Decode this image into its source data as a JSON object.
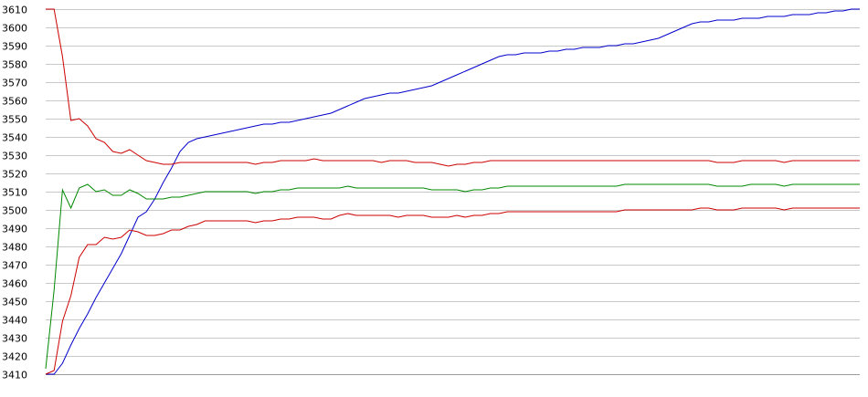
{
  "chart_data": {
    "type": "line",
    "title": "",
    "xlabel": "",
    "ylabel": "",
    "ylim": [
      3410,
      3610
    ],
    "yticks": [
      3410,
      3420,
      3430,
      3440,
      3450,
      3460,
      3470,
      3480,
      3490,
      3500,
      3510,
      3520,
      3530,
      3540,
      3550,
      3560,
      3570,
      3580,
      3590,
      3600,
      3610
    ],
    "grid": true,
    "legend": "none",
    "series": [
      {
        "color": "#0000cc",
        "values": [
          3410,
          3410,
          3416,
          3426,
          3435,
          3443,
          3452,
          3460,
          3468,
          3476,
          3486,
          3496,
          3499,
          3506,
          3515,
          3523,
          3532,
          3537,
          3539,
          3540,
          3541,
          3542,
          3543,
          3544,
          3545,
          3546,
          3547,
          3547,
          3548,
          3548,
          3549,
          3550,
          3551,
          3552,
          3553,
          3555,
          3557,
          3559,
          3561,
          3562,
          3563,
          3564,
          3564,
          3565,
          3566,
          3567,
          3568,
          3570,
          3572,
          3574,
          3576,
          3578,
          3580,
          3582,
          3584,
          3585,
          3585,
          3586,
          3586,
          3586,
          3587,
          3587,
          3588,
          3588,
          3589,
          3589,
          3589,
          3590,
          3590,
          3591,
          3591,
          3592,
          3593,
          3594,
          3596,
          3598,
          3600,
          3602,
          3603,
          3603,
          3604,
          3604,
          3604,
          3605,
          3605,
          3605,
          3606,
          3606,
          3606,
          3607,
          3607,
          3607,
          3608,
          3608,
          3609,
          3609,
          3610,
          3610
        ]
      },
      {
        "color": "#cc0000",
        "values": [
          3610,
          3610,
          3584,
          3549,
          3550,
          3546,
          3539,
          3537,
          3532,
          3531,
          3533,
          3530,
          3527,
          3526,
          3525,
          3525,
          3526,
          3526,
          3526,
          3526,
          3526,
          3526,
          3526,
          3526,
          3526,
          3525,
          3526,
          3526,
          3527,
          3527,
          3527,
          3527,
          3528,
          3527,
          3527,
          3527,
          3527,
          3527,
          3527,
          3527,
          3526,
          3527,
          3527,
          3527,
          3526,
          3526,
          3526,
          3525,
          3524,
          3525,
          3525,
          3526,
          3526,
          3527,
          3527,
          3527,
          3527,
          3527,
          3527,
          3527,
          3527,
          3527,
          3527,
          3527,
          3527,
          3527,
          3527,
          3527,
          3527,
          3527,
          3527,
          3527,
          3527,
          3527,
          3527,
          3527,
          3527,
          3527,
          3527,
          3527,
          3526,
          3526,
          3526,
          3527,
          3527,
          3527,
          3527,
          3527,
          3526,
          3527,
          3527,
          3527,
          3527,
          3527,
          3527,
          3527,
          3527,
          3527
        ]
      },
      {
        "color": "#008800",
        "values": [
          3413,
          3456,
          3511,
          3501,
          3512,
          3514,
          3510,
          3511,
          3508,
          3508,
          3511,
          3509,
          3506,
          3506,
          3506,
          3507,
          3507,
          3508,
          3509,
          3510,
          3510,
          3510,
          3510,
          3510,
          3510,
          3509,
          3510,
          3510,
          3511,
          3511,
          3512,
          3512,
          3512,
          3512,
          3512,
          3512,
          3513,
          3512,
          3512,
          3512,
          3512,
          3512,
          3512,
          3512,
          3512,
          3512,
          3511,
          3511,
          3511,
          3511,
          3510,
          3511,
          3511,
          3512,
          3512,
          3513,
          3513,
          3513,
          3513,
          3513,
          3513,
          3513,
          3513,
          3513,
          3513,
          3513,
          3513,
          3513,
          3513,
          3514,
          3514,
          3514,
          3514,
          3514,
          3514,
          3514,
          3514,
          3514,
          3514,
          3514,
          3513,
          3513,
          3513,
          3513,
          3514,
          3514,
          3514,
          3514,
          3513,
          3514,
          3514,
          3514,
          3514,
          3514,
          3514,
          3514,
          3514,
          3514
        ]
      },
      {
        "color": "#cc0000",
        "values": [
          3410,
          3412,
          3439,
          3453,
          3474,
          3481,
          3481,
          3485,
          3484,
          3485,
          3489,
          3488,
          3486,
          3486,
          3487,
          3489,
          3489,
          3491,
          3492,
          3494,
          3494,
          3494,
          3494,
          3494,
          3494,
          3493,
          3494,
          3494,
          3495,
          3495,
          3496,
          3496,
          3496,
          3495,
          3495,
          3497,
          3498,
          3497,
          3497,
          3497,
          3497,
          3497,
          3496,
          3497,
          3497,
          3497,
          3496,
          3496,
          3496,
          3497,
          3496,
          3497,
          3497,
          3498,
          3498,
          3499,
          3499,
          3499,
          3499,
          3499,
          3499,
          3499,
          3499,
          3499,
          3499,
          3499,
          3499,
          3499,
          3499,
          3500,
          3500,
          3500,
          3500,
          3500,
          3500,
          3500,
          3500,
          3500,
          3501,
          3501,
          3500,
          3500,
          3500,
          3501,
          3501,
          3501,
          3501,
          3501,
          3500,
          3501,
          3501,
          3501,
          3501,
          3501,
          3501,
          3501,
          3501,
          3501
        ]
      }
    ]
  }
}
